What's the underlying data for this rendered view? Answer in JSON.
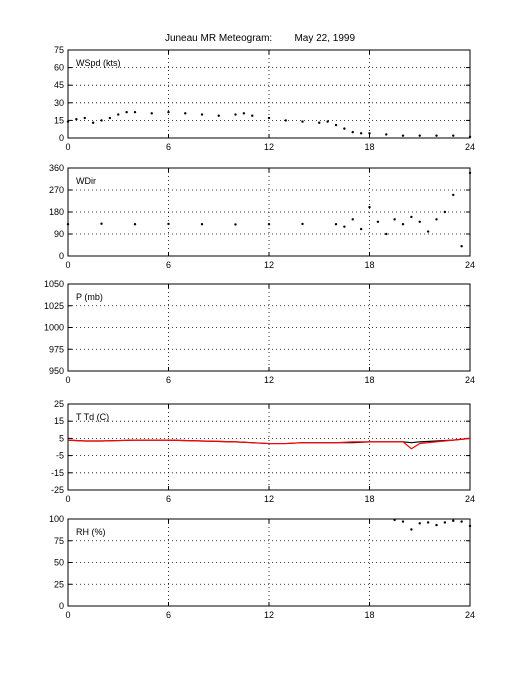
{
  "figure": {
    "title": "Juneau MR Meteogram:",
    "date": "May 22, 1999"
  },
  "colors": {
    "primary_series": "#000000",
    "dewpoint_series": "#ff0000",
    "grid": "#000000"
  },
  "chart_data": [
    {
      "type": "scatter",
      "label": "WSpd (kts)",
      "xlim": [
        0,
        24
      ],
      "ylim": [
        0,
        75
      ],
      "xticks": [
        0,
        6,
        12,
        18,
        24
      ],
      "yticks": [
        0,
        15,
        30,
        45,
        60,
        75
      ],
      "grid": true,
      "series": [
        {
          "x": [
            0,
            0.5,
            1,
            1.5,
            2,
            2.5,
            3,
            3.5,
            4,
            5,
            6,
            7,
            8,
            9,
            10,
            10.5,
            11,
            12,
            13,
            14,
            15,
            15.5,
            16,
            16.5,
            17,
            17.5,
            18,
            19,
            20,
            21,
            22,
            23,
            24
          ],
          "y": [
            14,
            16,
            17,
            13,
            15,
            17,
            20,
            22,
            22,
            21,
            22,
            21,
            20,
            19,
            20,
            21,
            19,
            17,
            15,
            14,
            13,
            14,
            11,
            8,
            5,
            4,
            4,
            3,
            2,
            2,
            2,
            2,
            1
          ]
        }
      ]
    },
    {
      "type": "scatter",
      "label": "WDir",
      "xlim": [
        0,
        24
      ],
      "ylim": [
        0,
        360
      ],
      "xticks": [
        0,
        6,
        12,
        18,
        24
      ],
      "yticks": [
        0,
        90,
        180,
        270,
        360
      ],
      "grid": true,
      "series": [
        {
          "x": [
            0,
            2,
            4,
            6,
            8,
            10,
            12,
            14,
            16,
            16.5,
            17,
            17.5,
            18,
            18.5,
            19,
            19.5,
            20,
            20.5,
            21,
            21.5,
            22,
            22.5,
            23,
            23.5,
            24
          ],
          "y": [
            130,
            132,
            130,
            131,
            130,
            129,
            130,
            131,
            130,
            120,
            150,
            110,
            200,
            140,
            90,
            150,
            130,
            160,
            140,
            100,
            150,
            180,
            250,
            40,
            340
          ]
        }
      ]
    },
    {
      "type": "scatter",
      "label": "P (mb)",
      "xlim": [
        0,
        24
      ],
      "ylim": [
        950,
        1050
      ],
      "xticks": [
        0,
        6,
        12,
        18,
        24
      ],
      "yticks": [
        950,
        975,
        1000,
        1025,
        1050
      ],
      "grid": true,
      "series": []
    },
    {
      "type": "line",
      "label": "T Td (C)",
      "xlim": [
        0,
        24
      ],
      "ylim": [
        -25,
        25
      ],
      "xticks": [
        0,
        6,
        12,
        18,
        24
      ],
      "yticks": [
        -25,
        -15,
        -5,
        5,
        15,
        25
      ],
      "grid": true,
      "series": [
        {
          "color": "#000000",
          "x": [
            0,
            1,
            2,
            4,
            6,
            8,
            10,
            11,
            12,
            13,
            14,
            16,
            17,
            18,
            19,
            20,
            20.5,
            21,
            22,
            23,
            24
          ],
          "y": [
            4,
            3.5,
            3.5,
            4,
            4,
            3.5,
            3,
            2.5,
            2,
            2,
            2.5,
            2.5,
            2.5,
            3,
            3,
            3,
            2.5,
            3,
            3.5,
            4,
            5
          ]
        },
        {
          "color": "#ff0000",
          "x": [
            0,
            1,
            2,
            4,
            6,
            8,
            10,
            11,
            12,
            13,
            14,
            16,
            17,
            18,
            19,
            20,
            20.5,
            21,
            22,
            23,
            24
          ],
          "y": [
            4,
            3.5,
            3.5,
            4,
            4,
            3.5,
            3,
            2.5,
            2,
            2,
            2.5,
            2.5,
            3,
            3,
            3,
            3,
            -1,
            2,
            3,
            4,
            5
          ]
        }
      ]
    },
    {
      "type": "scatter",
      "label": "RH (%)",
      "xlim": [
        0,
        24
      ],
      "ylim": [
        0,
        100
      ],
      "xticks": [
        0,
        6,
        12,
        18,
        24
      ],
      "yticks": [
        0,
        25,
        50,
        75,
        100
      ],
      "grid": true,
      "series": [
        {
          "x": [
            19.5,
            20,
            20.5,
            21,
            21.5,
            22,
            22.5,
            23,
            23.5,
            24
          ],
          "y": [
            99,
            97,
            88,
            95,
            96,
            93,
            96,
            98,
            97,
            92
          ]
        }
      ]
    }
  ]
}
